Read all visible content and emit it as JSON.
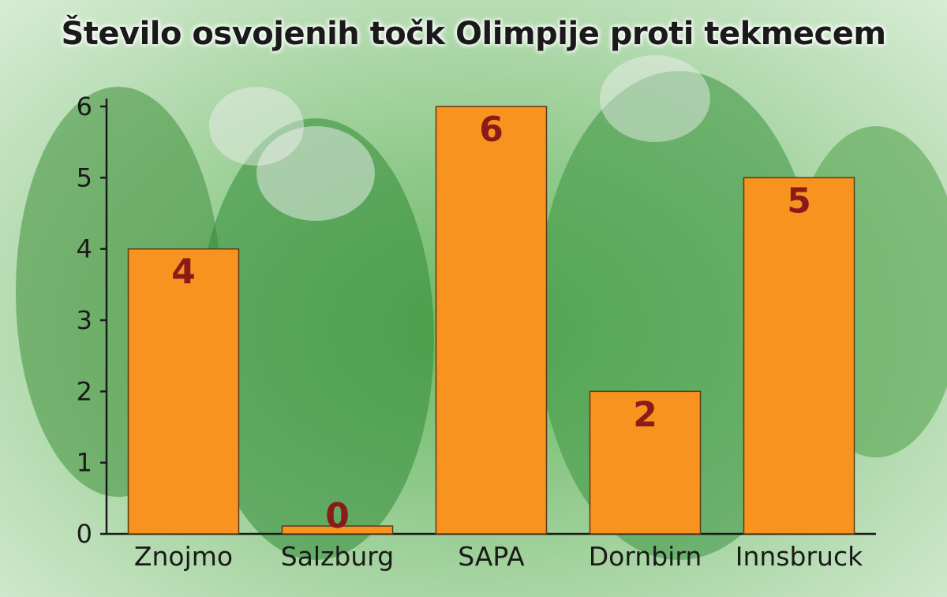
{
  "chart_data": {
    "type": "bar",
    "title": "Število osvojenih točk Olimpije proti tekmecem",
    "categories": [
      "Znojmo",
      "Salzburg",
      "SAPA",
      "Dornbirn",
      "Innsbruck"
    ],
    "values": [
      4,
      0,
      6,
      2,
      5
    ],
    "data_labels": [
      "4",
      "0",
      "6",
      "2",
      "5"
    ],
    "ylim": [
      0,
      6
    ],
    "yticks": [
      0,
      1,
      2,
      3,
      4,
      5,
      6
    ],
    "xlabel": "",
    "ylabel": "",
    "grid": false,
    "legend": "none",
    "bar_color": "#f7931e",
    "bar_edge_color": "#5a3a1a",
    "data_label_color": "#8b1a1a",
    "axis_color": "#1a1a1a"
  }
}
